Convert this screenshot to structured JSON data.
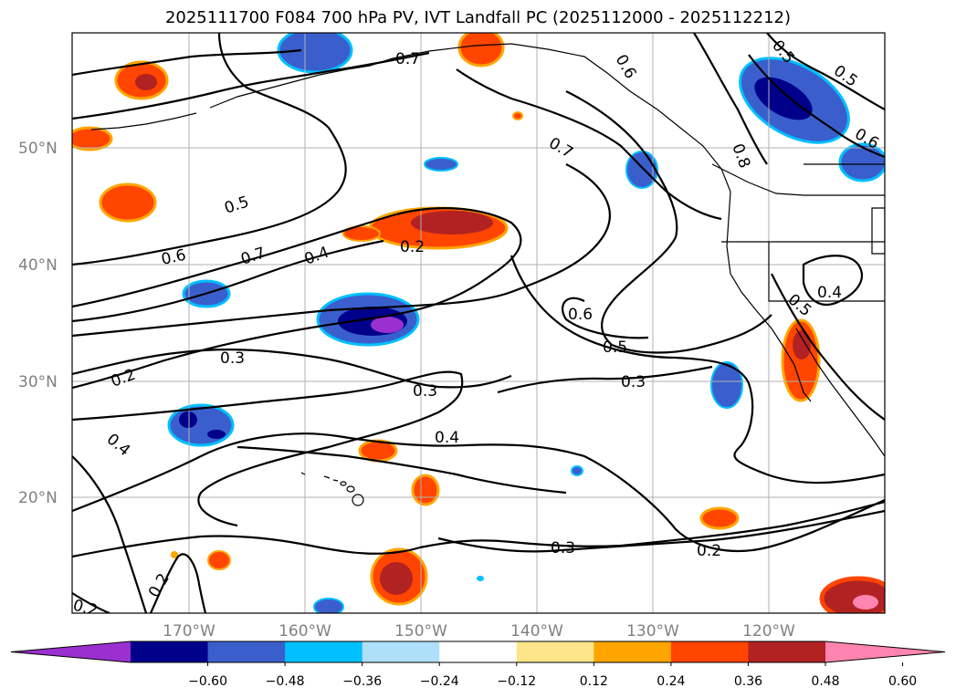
{
  "title": "2025111700 F084 700 hPa PV, IVT Landfall PC (2025112000 - 2025112212)",
  "lat_labels": [
    "50°N",
    "40°N",
    "30°N",
    "20°N"
  ],
  "lon_labels": [
    "170°W",
    "160°W",
    "150°W",
    "140°W",
    "130°W",
    "120°W"
  ],
  "contour_labels": [
    "0.7",
    "0.7",
    "0.5",
    "0.5",
    "0.6",
    "0.8",
    "0.5",
    "0.6",
    "0.7",
    "0.4",
    "0.2",
    "0.6",
    "0.5",
    "0.4",
    "0.5",
    "0.3",
    "0.3",
    "0.3",
    "0.2",
    "0.4",
    "0.4",
    "0.3",
    "0.2",
    "0.2",
    "0.2",
    "0.6"
  ],
  "colorbar": {
    "ticks": [
      "−0.60",
      "−0.48",
      "−0.36",
      "−0.24",
      "−0.12",
      "0.12",
      "0.24",
      "0.36",
      "0.48",
      "0.60"
    ],
    "colors": [
      "#9b30d0",
      "#00008b",
      "#3a5fcd",
      "#00bfff",
      "#aee0fa",
      "#ffffff",
      "#fde68a",
      "#ffa500",
      "#ff4500",
      "#b22222",
      "#ff85b0"
    ]
  }
}
